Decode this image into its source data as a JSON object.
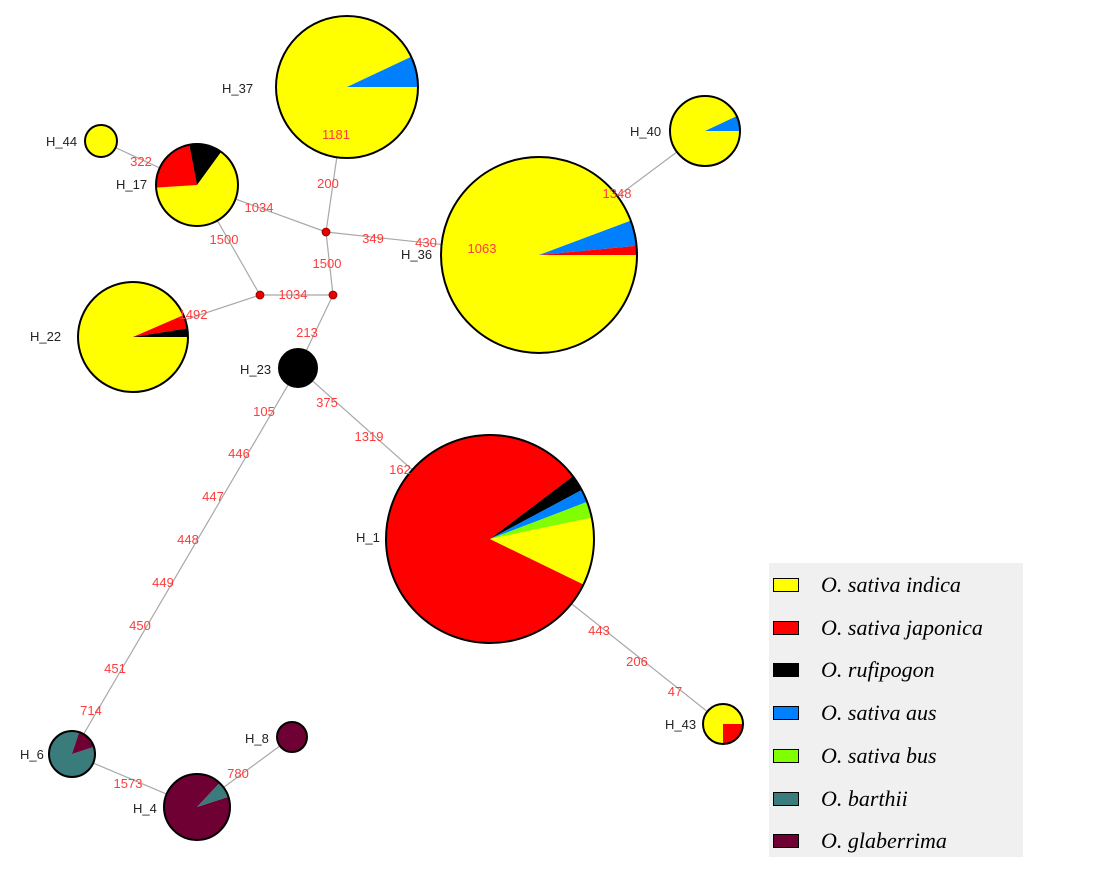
{
  "colors": {
    "indica": "#ffff00",
    "japonica": "#ff0000",
    "rufipogon": "#000000",
    "aus": "#0080ff",
    "bus": "#80ff00",
    "barthii": "#3a7c7c",
    "glaberrima": "#6e0033"
  },
  "legend": [
    {
      "key": "indica",
      "label": "O. sativa indica"
    },
    {
      "key": "japonica",
      "label": "O. sativa japonica"
    },
    {
      "key": "rufipogon",
      "label": "O. rufipogon"
    },
    {
      "key": "aus",
      "label": "O. sativa aus"
    },
    {
      "key": "bus",
      "label": "O. sativa bus"
    },
    {
      "key": "barthii",
      "label": "O. barthii"
    },
    {
      "key": "glaberrima",
      "label": "O. glaberrima"
    }
  ],
  "haplotypes": [
    {
      "id": "H_37",
      "label": "H_37",
      "composition": [
        {
          "key": "indica",
          "share": 0.93
        },
        {
          "key": "aus",
          "share": 0.07
        }
      ]
    },
    {
      "id": "H_44",
      "label": "H_44",
      "composition": [
        {
          "key": "indica",
          "share": 1.0
        }
      ]
    },
    {
      "id": "H_17",
      "label": "H_17",
      "composition": [
        {
          "key": "indica",
          "share": 0.64
        },
        {
          "key": "japonica",
          "share": 0.23
        },
        {
          "key": "rufipogon",
          "share": 0.13
        }
      ]
    },
    {
      "id": "H_40",
      "label": "H_40",
      "composition": [
        {
          "key": "indica",
          "share": 0.93
        },
        {
          "key": "aus",
          "share": 0.07
        }
      ]
    },
    {
      "id": "H_36",
      "label": "H_36",
      "composition": [
        {
          "key": "indica",
          "share": 0.943
        },
        {
          "key": "aus",
          "share": 0.042
        },
        {
          "key": "japonica",
          "share": 0.015
        }
      ]
    },
    {
      "id": "H_22",
      "label": "H_22",
      "composition": [
        {
          "key": "indica",
          "share": 0.935
        },
        {
          "key": "japonica",
          "share": 0.04
        },
        {
          "key": "rufipogon",
          "share": 0.025
        }
      ]
    },
    {
      "id": "H_23",
      "label": "H_23",
      "composition": [
        {
          "key": "rufipogon",
          "share": 1.0
        }
      ]
    },
    {
      "id": "H_1",
      "label": "H_1",
      "composition": [
        {
          "key": "japonica",
          "share": 0.825
        },
        {
          "key": "rufipogon",
          "share": 0.025
        },
        {
          "key": "aus",
          "share": 0.02
        },
        {
          "key": "bus",
          "share": 0.025
        },
        {
          "key": "indica",
          "share": 0.105
        }
      ]
    },
    {
      "id": "H_43",
      "label": "H_43",
      "composition": [
        {
          "key": "indica",
          "share": 0.75
        },
        {
          "key": "japonica",
          "share": 0.25
        }
      ]
    },
    {
      "id": "H_6",
      "label": "H_6",
      "composition": [
        {
          "key": "barthii",
          "share": 0.85
        },
        {
          "key": "glaberrima",
          "share": 0.15
        }
      ]
    },
    {
      "id": "H_4",
      "label": "H_4",
      "composition": [
        {
          "key": "glaberrima",
          "share": 0.92
        },
        {
          "key": "barthii",
          "share": 0.08
        }
      ]
    },
    {
      "id": "H_8",
      "label": "H_8",
      "composition": [
        {
          "key": "glaberrima",
          "share": 1.0
        }
      ]
    }
  ],
  "medians": [
    "m1",
    "m2",
    "m3"
  ],
  "edges": [
    {
      "from": "H_37",
      "to": "m1",
      "labels": [
        "200"
      ]
    },
    {
      "from": "H_44",
      "to": "H_17",
      "labels": [
        "322"
      ]
    },
    {
      "from": "H_17",
      "to": "m1",
      "labels": [
        "1034"
      ]
    },
    {
      "from": "m1",
      "to": "H_36",
      "labels": [
        "349",
        "430"
      ]
    },
    {
      "from": "H_40",
      "to": "H_36",
      "labels": [
        "1348"
      ]
    },
    {
      "from": "H_36",
      "to": "H_36",
      "labels": [
        "1063"
      ]
    },
    {
      "from": "H_37",
      "to": "H_37",
      "labels": [
        "1181"
      ]
    },
    {
      "from": "m1",
      "to": "m3",
      "labels": [
        "1500"
      ]
    },
    {
      "from": "H_17",
      "to": "m2",
      "labels": [
        "1500"
      ]
    },
    {
      "from": "m2",
      "to": "m3",
      "labels": [
        "1034"
      ]
    },
    {
      "from": "H_22",
      "to": "m2",
      "labels": [
        "1492"
      ]
    },
    {
      "from": "m3",
      "to": "H_23",
      "labels": [
        "213"
      ]
    },
    {
      "from": "H_23",
      "to": "H_1",
      "labels": [
        "375",
        "1319",
        "162"
      ]
    },
    {
      "from": "H_23",
      "to": "H_6",
      "labels": [
        "105",
        "446",
        "447",
        "448",
        "449",
        "450",
        "451",
        "714"
      ]
    },
    {
      "from": "H_1",
      "to": "H_43",
      "labels": [
        "443",
        "206",
        "47"
      ]
    },
    {
      "from": "H_6",
      "to": "H_4",
      "labels": [
        "1573"
      ]
    },
    {
      "from": "H_4",
      "to": "H_8",
      "labels": [
        "780"
      ]
    }
  ]
}
